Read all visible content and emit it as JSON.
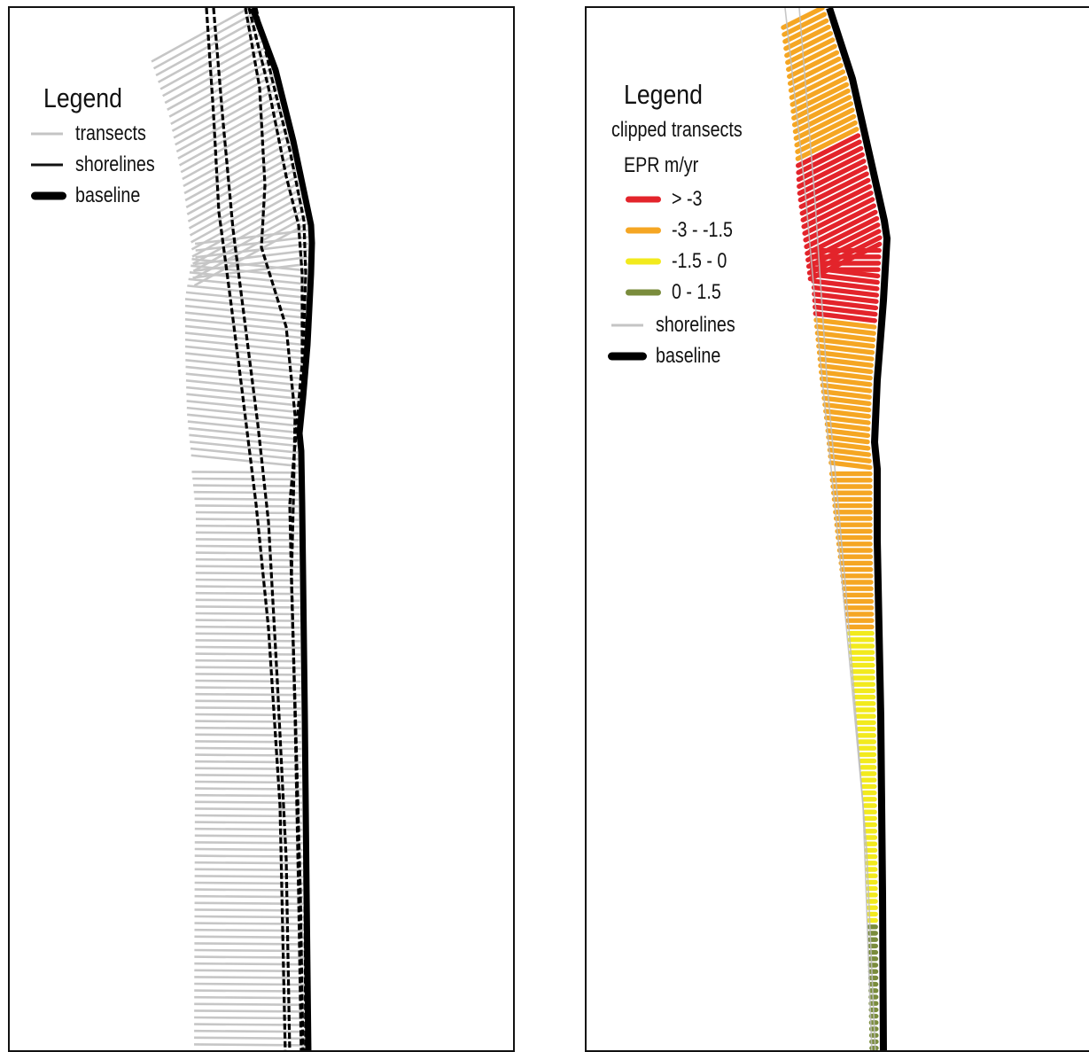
{
  "left_map": {
    "legend": {
      "title": "Legend",
      "items": [
        {
          "label": "transects",
          "color": "#c4c4c4",
          "symbol": "thin-gray-line"
        },
        {
          "label": "shorelines",
          "color": "#111111",
          "symbol": "thin-black-line"
        },
        {
          "label": "baseline",
          "color": "#000000",
          "symbol": "thick-black-line"
        }
      ]
    }
  },
  "right_map": {
    "legend": {
      "title": "Legend",
      "group_label": "clipped transects",
      "field_label": "EPR m/yr",
      "classes": [
        {
          "label": "> -3",
          "color": "#e3242b"
        },
        {
          "label": "-3 - -1.5",
          "color": "#f5a623"
        },
        {
          "label": "-1.5 - 0",
          "color": "#f2ea1d"
        },
        {
          "label": "0 - 1.5",
          "color": "#7a8c3c"
        }
      ],
      "items": [
        {
          "label": "shorelines",
          "color": "#c4c4c4",
          "symbol": "thin-gray-line"
        },
        {
          "label": "baseline",
          "color": "#000000",
          "symbol": "thick-black-line"
        }
      ]
    }
  }
}
